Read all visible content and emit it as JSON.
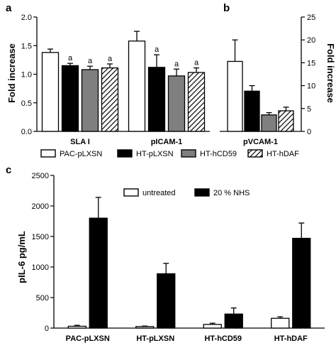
{
  "panel_labels": {
    "a": "a",
    "b": "b",
    "c": "c"
  },
  "legend_ab": [
    "PAC-pLXSN",
    "HT-pLXSN",
    "HT-hCD59",
    "HT-hDAF"
  ],
  "legend_c": [
    "untreated",
    "20 % NHS"
  ],
  "colors": {
    "white": "#ffffff",
    "black": "#000000",
    "gray": "#7f7f7f",
    "hatch": "hatched"
  },
  "chart_data": [
    {
      "panel": "a",
      "type": "bar",
      "ylabel": "Fold increase",
      "ylim": [
        0,
        2.0
      ],
      "yticks": [
        "0.0",
        "0.5",
        "1.0",
        "1.5",
        "2.0"
      ],
      "categories": [
        "SLA I",
        "pICAM-1"
      ],
      "series": [
        {
          "name": "PAC-pLXSN",
          "values": [
            1.38,
            1.58
          ],
          "errors": [
            0.06,
            0.17
          ],
          "marks": [
            "",
            ""
          ]
        },
        {
          "name": "HT-pLXSN",
          "values": [
            1.15,
            1.12
          ],
          "errors": [
            0.04,
            0.22
          ],
          "marks": [
            "a",
            "a"
          ]
        },
        {
          "name": "HT-hCD59",
          "values": [
            1.08,
            0.97
          ],
          "errors": [
            0.06,
            0.12
          ],
          "marks": [
            "a",
            "a"
          ]
        },
        {
          "name": "HT-hDAF",
          "values": [
            1.11,
            1.03
          ],
          "errors": [
            0.07,
            0.08
          ],
          "marks": [
            "a",
            "a"
          ]
        }
      ]
    },
    {
      "panel": "b",
      "type": "bar",
      "ylabel": "Fold increase",
      "y_axis_side": "right",
      "ylim": [
        0,
        25
      ],
      "yticks": [
        "0",
        "5",
        "10",
        "15",
        "20",
        "25"
      ],
      "categories": [
        "pVCAM-1"
      ],
      "series": [
        {
          "name": "PAC-pLXSN",
          "values": [
            15.3
          ],
          "errors": [
            4.7
          ]
        },
        {
          "name": "HT-pLXSN",
          "values": [
            8.8
          ],
          "errors": [
            1.2
          ]
        },
        {
          "name": "HT-hCD59",
          "values": [
            3.6
          ],
          "errors": [
            0.5
          ]
        },
        {
          "name": "HT-hDAF",
          "values": [
            4.5
          ],
          "errors": [
            0.8
          ]
        }
      ]
    },
    {
      "panel": "c",
      "type": "bar",
      "ylabel": "pIL-6 pg/mL",
      "ylim": [
        0,
        2500
      ],
      "yticks": [
        "0",
        "500",
        "1000",
        "1500",
        "2000",
        "2500"
      ],
      "categories": [
        "PAC-pLXSN",
        "HT-pLXSN",
        "HT-hCD59",
        "HT-hDAF"
      ],
      "series": [
        {
          "name": "untreated",
          "values": [
            30,
            25,
            60,
            160
          ],
          "errors": [
            15,
            8,
            20,
            25
          ]
        },
        {
          "name": "20 % NHS",
          "values": [
            1800,
            890,
            230,
            1470
          ],
          "errors": [
            340,
            170,
            100,
            250
          ]
        }
      ]
    }
  ]
}
